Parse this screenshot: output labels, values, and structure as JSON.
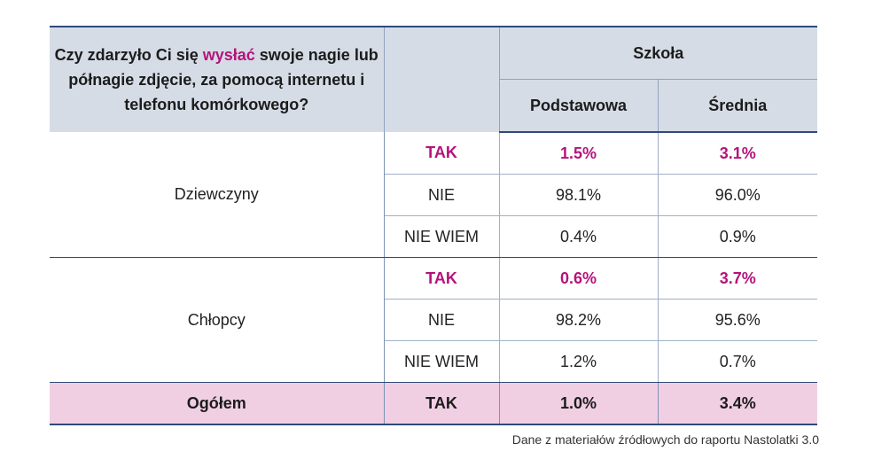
{
  "header": {
    "question_before": "Czy zdarzyło Ci się ",
    "question_highlight": "wysłać",
    "question_after": " swoje nagie lub półnagie zdjęcie, za pomocą internetu i telefonu komórkowego?",
    "school_label": "Szkoła",
    "col_primary": "Podstawowa",
    "col_secondary": "Średnia"
  },
  "groups": [
    {
      "name": "Dziewczyny",
      "rows": [
        {
          "answer": "TAK",
          "primary": "1.5%",
          "secondary": "3.1%"
        },
        {
          "answer": "NIE",
          "primary": "98.1%",
          "secondary": "96.0%"
        },
        {
          "answer": "NIE WIEM",
          "primary": "0.4%",
          "secondary": "0.9%"
        }
      ]
    },
    {
      "name": "Chłopcy",
      "rows": [
        {
          "answer": "TAK",
          "primary": "0.6%",
          "secondary": "3.7%"
        },
        {
          "answer": "NIE",
          "primary": "98.2%",
          "secondary": "95.6%"
        },
        {
          "answer": "NIE WIEM",
          "primary": "1.2%",
          "secondary": "0.7%"
        }
      ]
    }
  ],
  "total": {
    "label": "Ogółem",
    "answer": "TAK",
    "primary": "1.0%",
    "secondary": "3.4%"
  },
  "source": "Dane z materiałów źródłowych do raportu Nastolatki 3.0",
  "colors": {
    "highlight": "#b5137a",
    "header_bg": "#d5dce6",
    "total_bg": "#f1cfe3",
    "rule": "#2f4a7a"
  }
}
